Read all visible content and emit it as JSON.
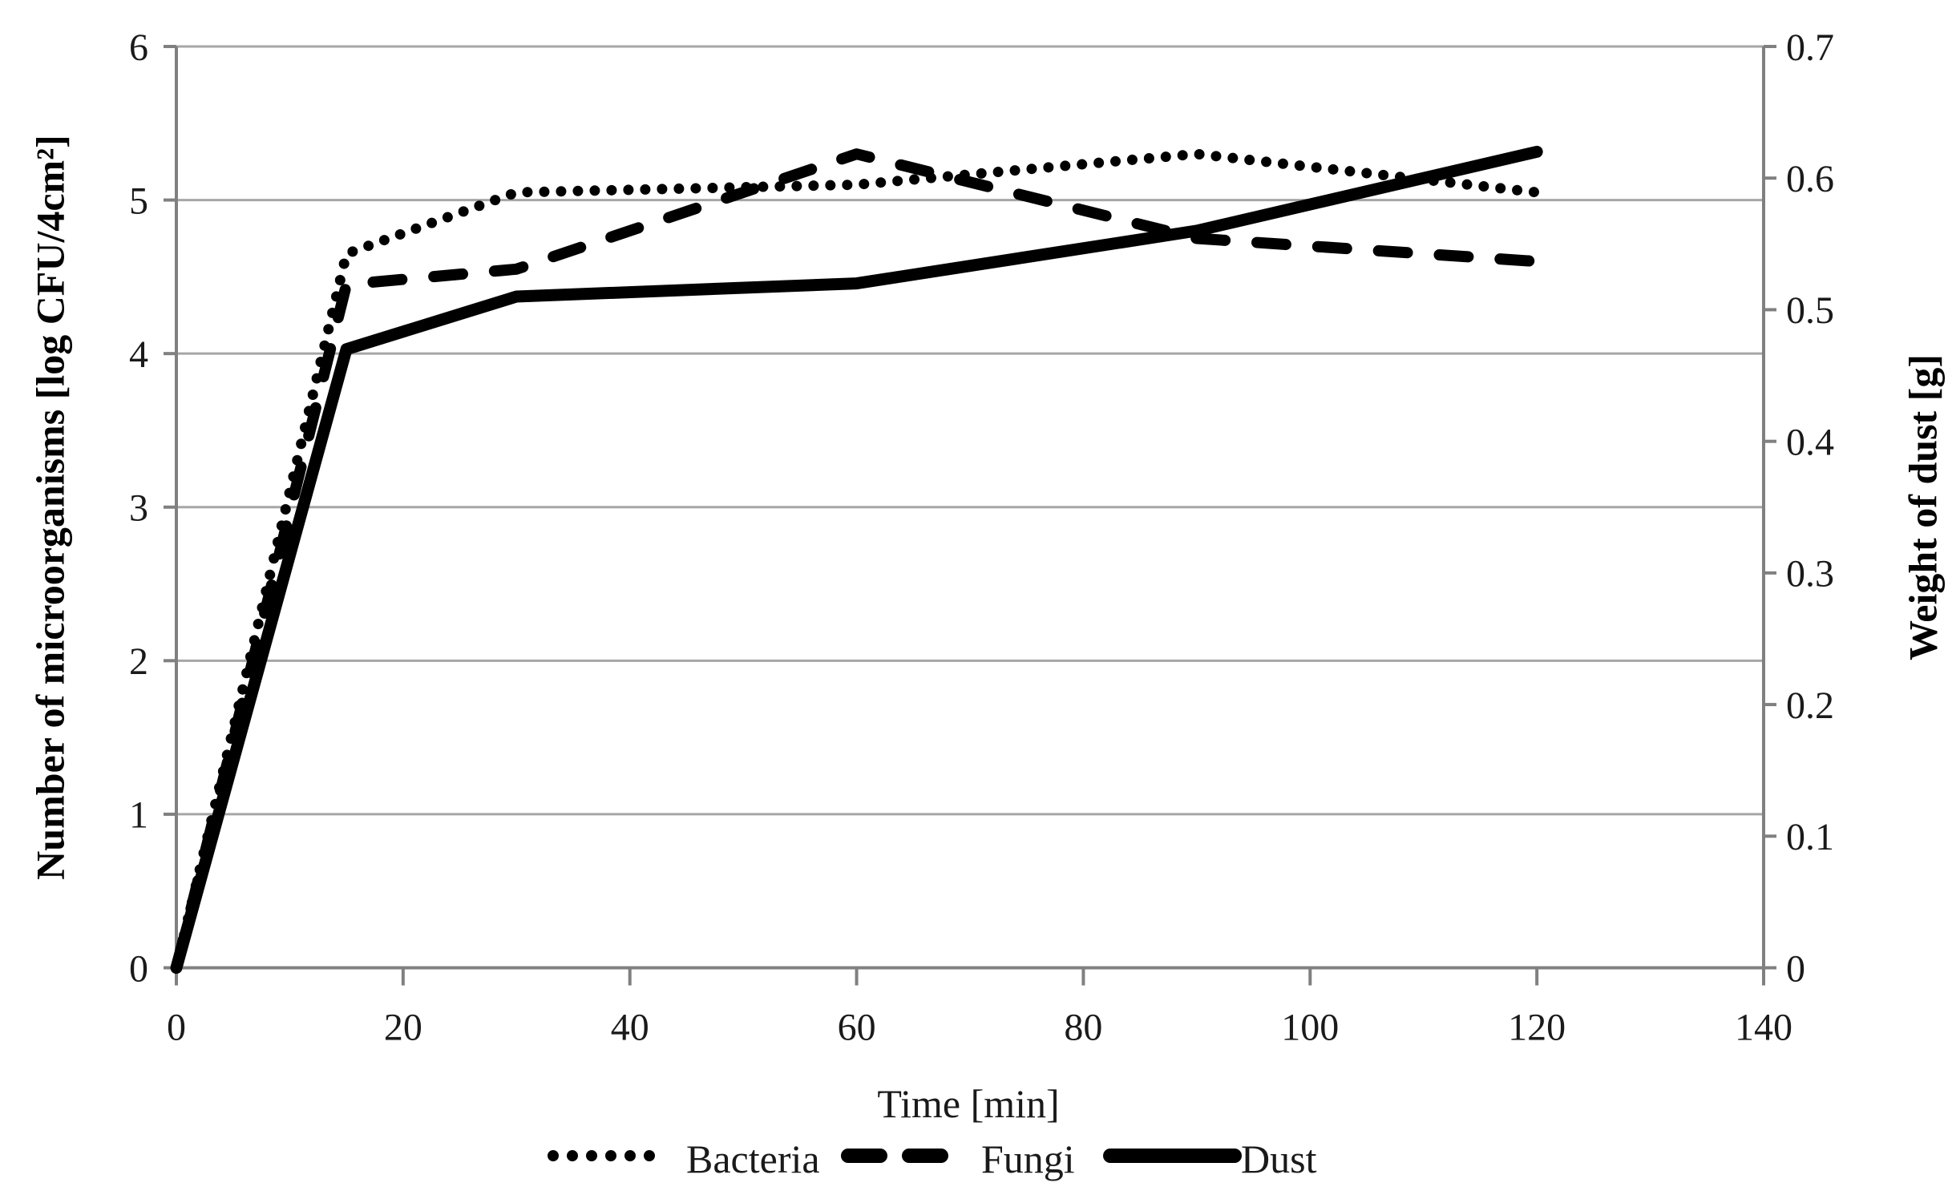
{
  "chart_data": {
    "type": "line",
    "title": "",
    "xlabel": "Time [min]",
    "ylabel_left": "Number of microorganisms [log CFU/4cm²]",
    "ylabel_right": "Weight of dust [g]",
    "x": [
      0,
      15,
      30,
      60,
      90,
      120
    ],
    "series": [
      {
        "name": "Bacteria",
        "axis": "left",
        "style": "dotted",
        "values": [
          0,
          4.65,
          5.05,
          5.1,
          5.3,
          5.05
        ]
      },
      {
        "name": "Fungi",
        "axis": "left",
        "style": "dashed",
        "values": [
          0,
          4.45,
          4.55,
          5.3,
          4.75,
          4.6
        ]
      },
      {
        "name": "Dust",
        "axis": "right",
        "style": "solid",
        "values": [
          0,
          0.47,
          0.51,
          0.52,
          0.56,
          0.62
        ]
      }
    ],
    "xlim": [
      0,
      140
    ],
    "ylim_left": [
      0,
      6
    ],
    "ylim_right": [
      0,
      0.7
    ],
    "x_ticks": [
      0,
      20,
      40,
      60,
      80,
      100,
      120,
      140
    ],
    "y_left_ticks": [
      0,
      1,
      2,
      3,
      4,
      5,
      6
    ],
    "y_right_ticks": [
      0,
      0.1,
      0.2,
      0.3,
      0.4,
      0.5,
      0.6,
      0.7
    ],
    "grid": "horizontal",
    "legend_position": "bottom",
    "colors": {
      "series": "#000000",
      "gridline": "#a6a6a6",
      "axis": "#808080",
      "text": "#1a1a1a"
    }
  },
  "legend": {
    "items": [
      {
        "label": "Bacteria"
      },
      {
        "label": "Fungi"
      },
      {
        "label": "Dust"
      }
    ]
  }
}
